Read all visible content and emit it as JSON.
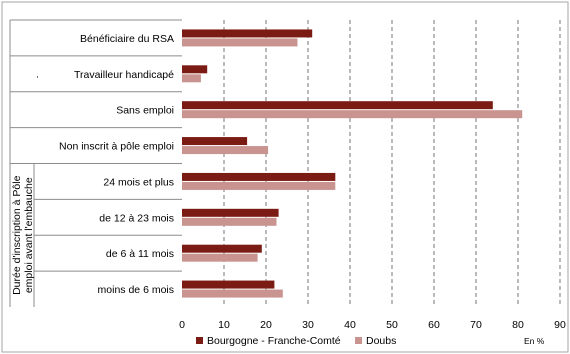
{
  "chart_data": {
    "type": "bar",
    "orientation": "horizontal",
    "categories": [
      "Bénéficiaire du RSA",
      "Travailleur handicapé",
      "Sans emploi",
      "Non inscrit à pôle emploi",
      "24 mois et plus",
      "de 12 à 23 mois",
      "de 6 à 11 mois",
      "moins de 6 mois"
    ],
    "group_label": "Durée d'inscription à Pôle emploi avant l'embauche",
    "series": [
      {
        "name": "Bourgogne - Franche-Comté",
        "color": "#7b1c14",
        "values": [
          31,
          6,
          74,
          15.5,
          36.5,
          23,
          19,
          22
        ]
      },
      {
        "name": "Doubs",
        "color": "#c99490",
        "values": [
          27.5,
          4.5,
          81,
          20.5,
          36.5,
          22.5,
          18,
          24
        ]
      }
    ],
    "xlim": [
      0,
      90
    ],
    "xticks": [
      0,
      10,
      20,
      30,
      40,
      50,
      60,
      70,
      80,
      90
    ],
    "unit_label": "En %",
    "grid": "vertical dashed",
    "legend": "bottom-left",
    "stray_mark": "."
  }
}
